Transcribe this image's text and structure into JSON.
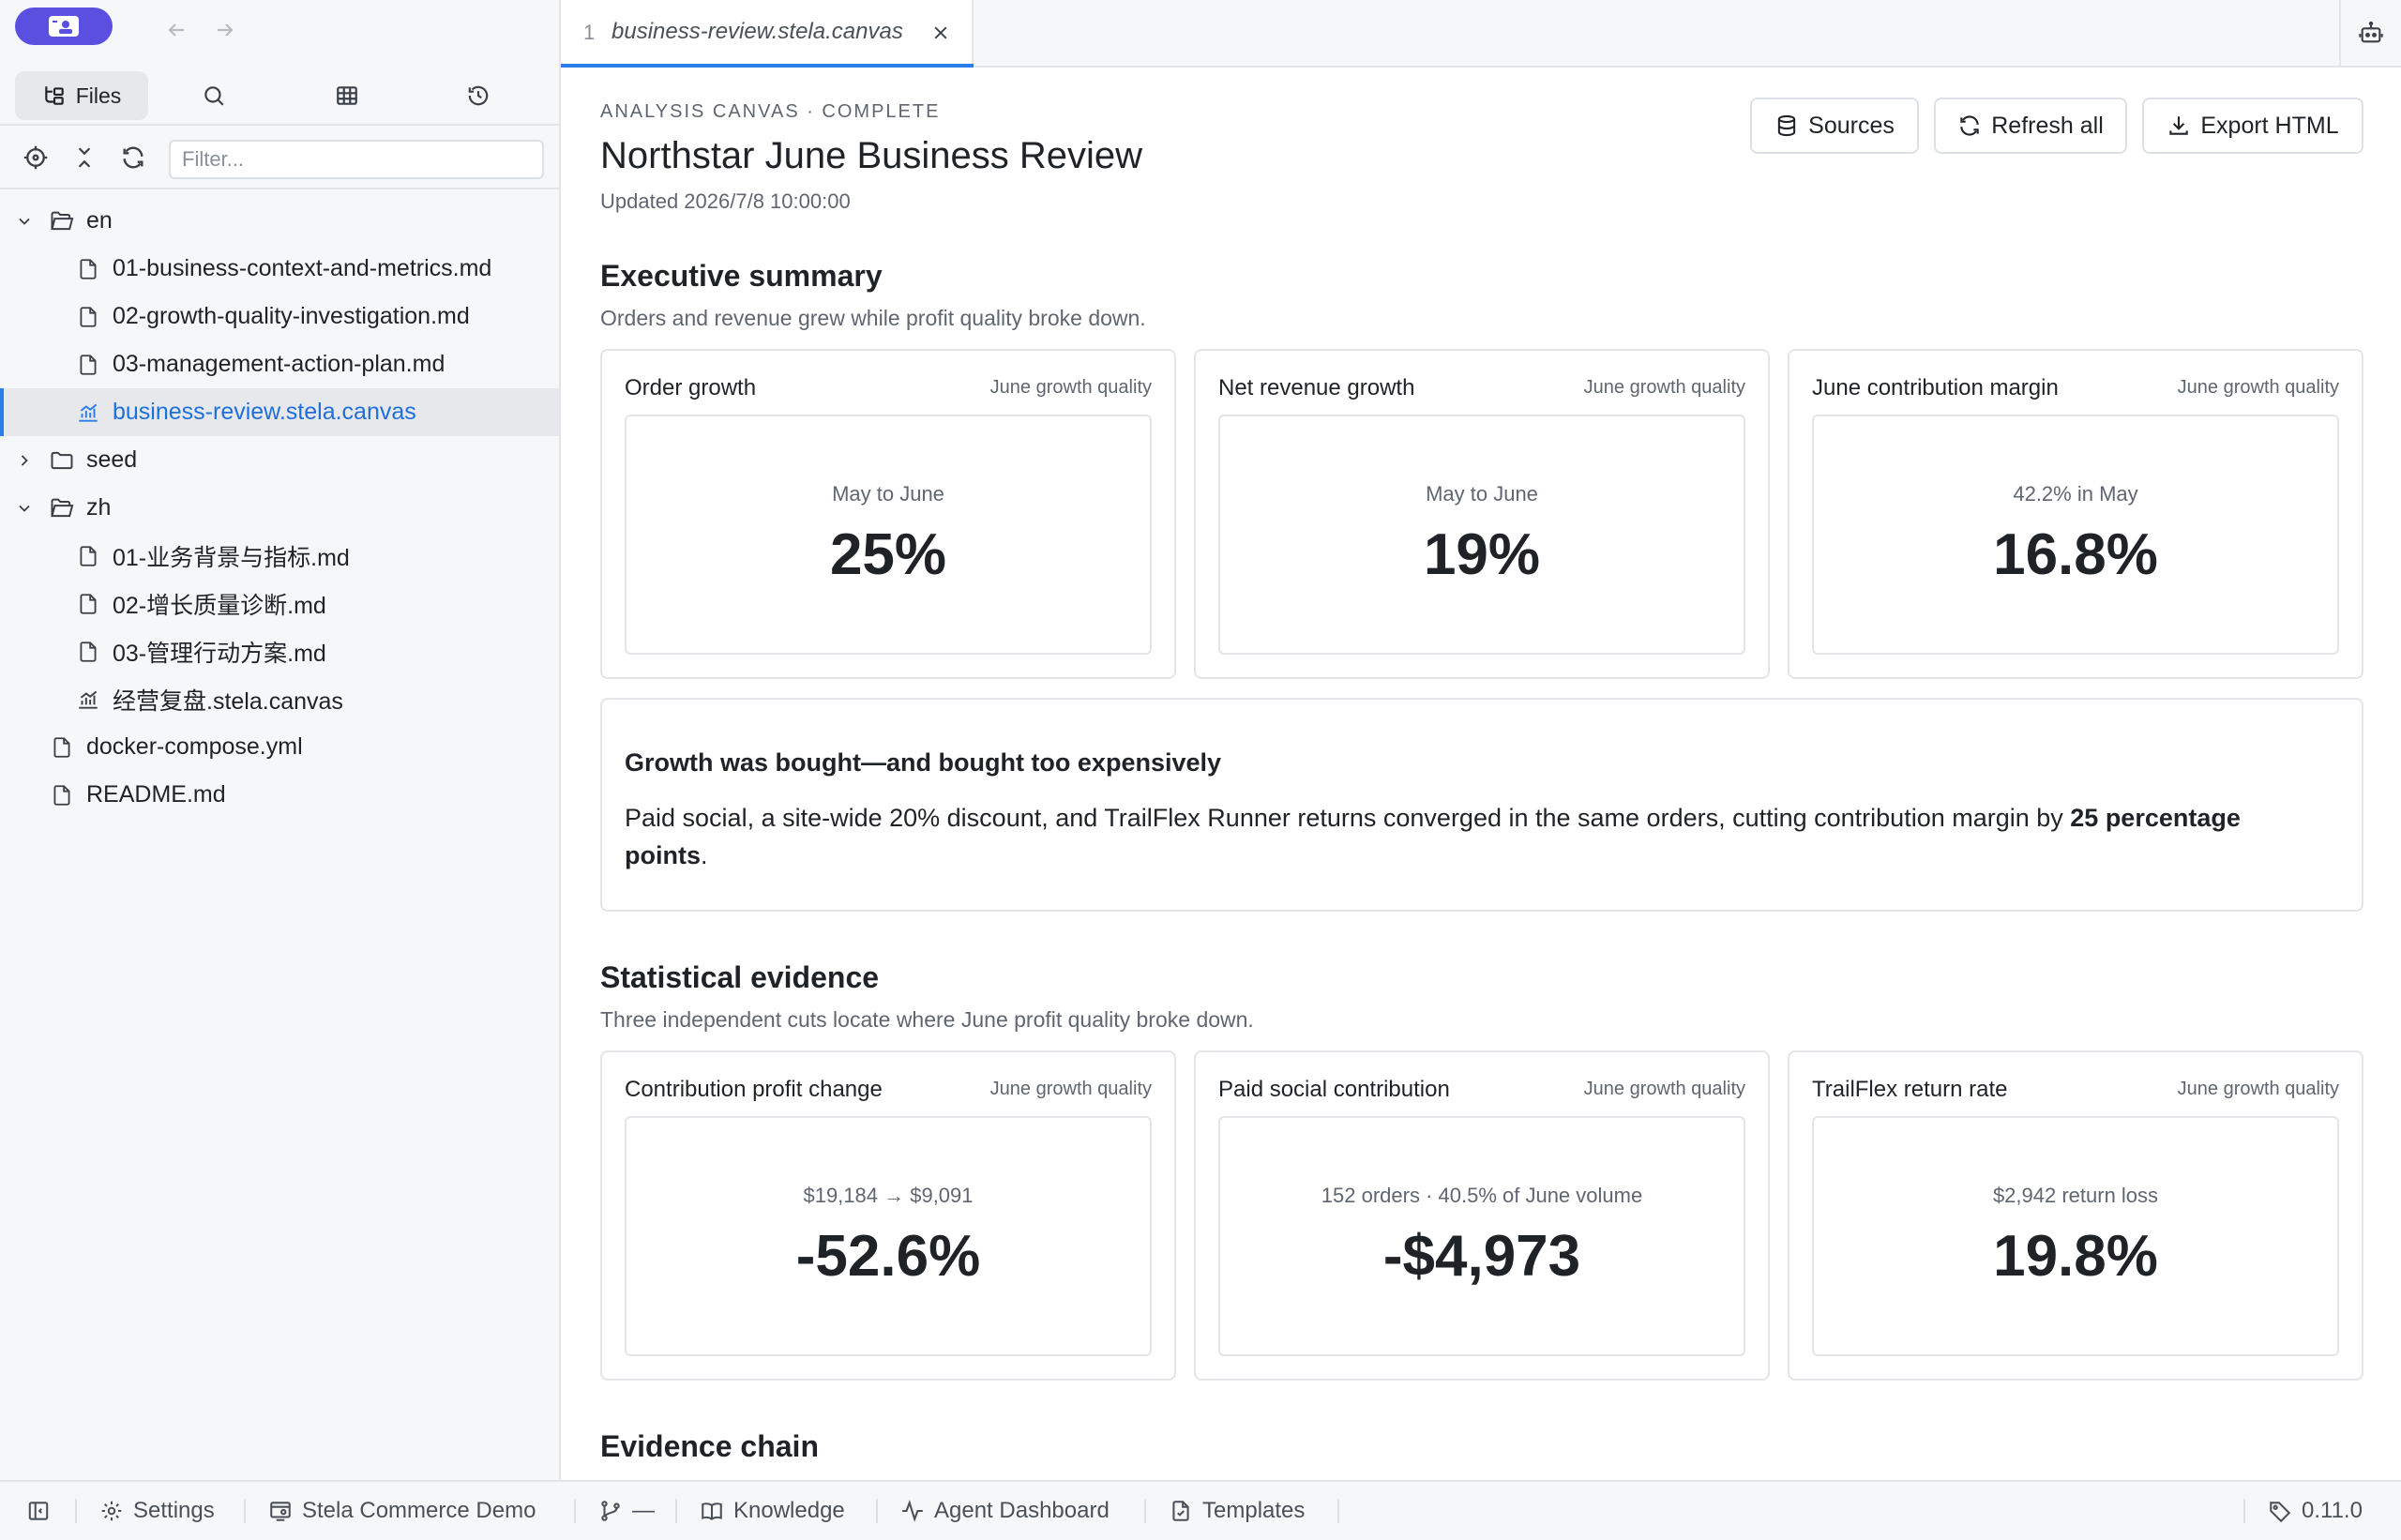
{
  "sidebar": {
    "tabs": {
      "files": "Files"
    },
    "filter_placeholder": "Filter...",
    "tree": [
      {
        "label": "en",
        "type": "folder",
        "expanded": true
      },
      {
        "label": "01-business-context-and-metrics.md",
        "type": "file"
      },
      {
        "label": "02-growth-quality-investigation.md",
        "type": "file"
      },
      {
        "label": "03-management-action-plan.md",
        "type": "file"
      },
      {
        "label": "business-review.stela.canvas",
        "type": "canvas",
        "selected": true
      },
      {
        "label": "seed",
        "type": "folder",
        "expanded": false
      },
      {
        "label": "zh",
        "type": "folder",
        "expanded": true
      },
      {
        "label": "01-业务背景与指标.md",
        "type": "file"
      },
      {
        "label": "02-增长质量诊断.md",
        "type": "file"
      },
      {
        "label": "03-管理行动方案.md",
        "type": "file"
      },
      {
        "label": "经营复盘.stela.canvas",
        "type": "canvas"
      },
      {
        "label": "docker-compose.yml",
        "type": "file"
      },
      {
        "label": "README.md",
        "type": "file"
      }
    ]
  },
  "tab": {
    "number": "1",
    "title": "business-review.stela.canvas"
  },
  "canvas": {
    "eyebrow": "ANALYSIS CANVAS · COMPLETE",
    "title": "Northstar June Business Review",
    "updated": "Updated 2026/7/8 10:00:00",
    "buttons": {
      "sources": "Sources",
      "refresh": "Refresh all",
      "export": "Export HTML"
    }
  },
  "executive": {
    "heading": "Executive summary",
    "subtitle": "Orders and revenue grew while profit quality broke down.",
    "cards": [
      {
        "title": "Order growth",
        "tag": "June growth quality",
        "caption": "May to June",
        "value": "25%"
      },
      {
        "title": "Net revenue growth",
        "tag": "June growth quality",
        "caption": "May to June",
        "value": "19%"
      },
      {
        "title": "June contribution margin",
        "tag": "June growth quality",
        "caption": "42.2% in May",
        "value": "16.8%"
      }
    ],
    "callout": {
      "heading": "Growth was bought—and bought too expensively",
      "text_before": "Paid social, a site-wide 20% discount, and TrailFlex Runner returns converged in the same orders, cutting contribution margin by ",
      "text_bold": "25 percentage points",
      "text_after": "."
    }
  },
  "statistical": {
    "heading": "Statistical evidence",
    "subtitle": "Three independent cuts locate where June profit quality broke down.",
    "cards": [
      {
        "title": "Contribution profit change",
        "tag": "June growth quality",
        "caption": "$19,184 → $9,091",
        "value": "-52.6%"
      },
      {
        "title": "Paid social contribution",
        "tag": "June growth quality",
        "caption": "152 orders · 40.5% of June volume",
        "value": "-$4,973"
      },
      {
        "title": "TrailFlex return rate",
        "tag": "June growth quality",
        "caption": "$2,942 return loss",
        "value": "19.8%"
      }
    ]
  },
  "evidence": {
    "heading": "Evidence chain"
  },
  "statusbar": {
    "settings": "Settings",
    "workspace": "Stela Commerce Demo",
    "branch": "—",
    "knowledge": "Knowledge",
    "agent": "Agent Dashboard",
    "templates": "Templates",
    "version": "0.11.0"
  },
  "colors": {
    "accent": "#2b7de9",
    "logo": "#5b4fe0",
    "sidebar_bg": "#f6f7f9"
  }
}
